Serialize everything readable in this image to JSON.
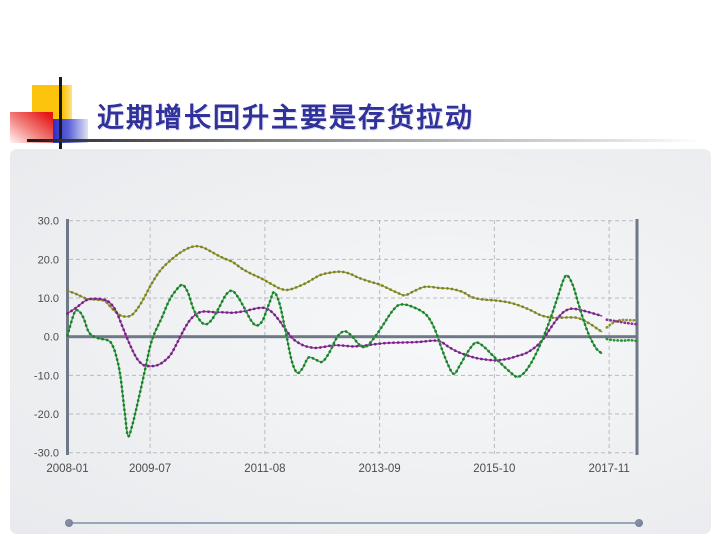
{
  "slide": {
    "title": "近期增长回升主要是存货拉动",
    "title_color": "#31319b"
  },
  "chart_data": {
    "type": "line",
    "title": "",
    "legend": "none",
    "grid": "dashed",
    "grid_color": "#b7bbc2",
    "axis_color": "#6e7887",
    "label_color": "#4c4c4c",
    "x_axis": {
      "unit": "months-since-2008-01",
      "tick_labels": [
        "2008-01",
        "2009-07",
        "2011-08",
        "2013-09",
        "2015-10",
        "2017-11"
      ],
      "tick_months": [
        0,
        18,
        43,
        68,
        93,
        118
      ],
      "range_months": [
        0,
        124
      ]
    },
    "y_axis": {
      "tick_labels": [
        "30.0",
        "20.0",
        "10.0",
        "0.0",
        "-10.0",
        "-20.0",
        "-30.0"
      ],
      "tick_values": [
        30,
        20,
        10,
        0,
        -10,
        -20,
        -30
      ],
      "range": [
        -30,
        30
      ],
      "zero_line": "solid"
    },
    "series": [
      {
        "name": "olive-series",
        "style": "solid-with-markers",
        "color": "#9aa03b",
        "marker_color": "#7f842c",
        "points": [
          [
            0,
            11.9
          ],
          [
            2,
            11.0
          ],
          [
            4,
            9.9
          ],
          [
            6,
            9.6
          ],
          [
            8,
            9.3
          ],
          [
            9,
            8.2
          ],
          [
            10.5,
            6.4
          ],
          [
            12,
            5.3
          ],
          [
            14,
            5.6
          ],
          [
            16,
            8.6
          ],
          [
            18,
            13.0
          ],
          [
            20,
            16.8
          ],
          [
            22,
            19.3
          ],
          [
            24.5,
            21.7
          ],
          [
            26.5,
            23.0
          ],
          [
            28,
            23.4
          ],
          [
            29.5,
            23.1
          ],
          [
            31,
            22.2
          ],
          [
            32.5,
            21.2
          ],
          [
            34,
            20.3
          ],
          [
            36,
            19.3
          ],
          [
            38,
            17.6
          ],
          [
            40,
            16.3
          ],
          [
            42,
            15.2
          ],
          [
            44,
            13.9
          ],
          [
            46,
            12.6
          ],
          [
            47.5,
            12.1
          ],
          [
            49,
            12.4
          ],
          [
            52,
            13.9
          ],
          [
            55,
            15.9
          ],
          [
            57.5,
            16.6
          ],
          [
            59.5,
            16.8
          ],
          [
            61.5,
            16.3
          ],
          [
            63.5,
            15.2
          ],
          [
            66,
            14.2
          ],
          [
            68,
            13.5
          ],
          [
            70,
            12.4
          ],
          [
            72,
            11.3
          ],
          [
            73.5,
            10.7
          ],
          [
            75.5,
            11.8
          ],
          [
            77.5,
            12.8
          ],
          [
            79,
            12.9
          ],
          [
            81,
            12.6
          ],
          [
            83.5,
            12.4
          ],
          [
            86,
            11.6
          ],
          [
            88,
            10.3
          ],
          [
            90,
            9.7
          ],
          [
            93,
            9.4
          ],
          [
            95,
            9.1
          ],
          [
            97,
            8.6
          ],
          [
            99,
            7.8
          ],
          [
            101,
            6.8
          ],
          [
            103,
            5.6
          ],
          [
            105,
            5.0
          ],
          [
            107,
            4.9
          ],
          [
            109,
            5.0
          ],
          [
            111,
            4.9
          ],
          [
            112.5,
            4.2
          ],
          [
            114,
            3.2
          ],
          [
            115.5,
            2.0
          ],
          [
            116.5,
            1.2
          ]
        ]
      },
      {
        "name": "purple-series",
        "style": "solid-with-markers",
        "color": "#9c3da5",
        "marker_color": "#782386",
        "points": [
          [
            0,
            6.0
          ],
          [
            2,
            7.6
          ],
          [
            4,
            9.4
          ],
          [
            5.5,
            9.8
          ],
          [
            7.5,
            9.7
          ],
          [
            9,
            9.0
          ],
          [
            10.5,
            6.8
          ],
          [
            12,
            2.5
          ],
          [
            13.5,
            -1.8
          ],
          [
            15,
            -5.4
          ],
          [
            16.5,
            -7.3
          ],
          [
            18,
            -7.6
          ],
          [
            19.5,
            -7.4
          ],
          [
            21,
            -6.4
          ],
          [
            22.5,
            -4.6
          ],
          [
            23.8,
            -1.8
          ],
          [
            25,
            1.0
          ],
          [
            26.5,
            4.0
          ],
          [
            28,
            5.8
          ],
          [
            29.5,
            6.5
          ],
          [
            31.5,
            6.4
          ],
          [
            34,
            6.3
          ],
          [
            36,
            6.2
          ],
          [
            38,
            6.5
          ],
          [
            40,
            7.0
          ],
          [
            41.5,
            7.4
          ],
          [
            43,
            7.4
          ],
          [
            44.5,
            6.4
          ],
          [
            46,
            4.4
          ],
          [
            47.5,
            1.9
          ],
          [
            49,
            -0.4
          ],
          [
            50.5,
            -1.7
          ],
          [
            52,
            -2.5
          ],
          [
            54,
            -2.9
          ],
          [
            56,
            -2.6
          ],
          [
            58,
            -2.2
          ],
          [
            60,
            -2.3
          ],
          [
            62,
            -2.5
          ],
          [
            64,
            -2.4
          ],
          [
            66,
            -2.1
          ],
          [
            68,
            -1.8
          ],
          [
            70,
            -1.6
          ],
          [
            73,
            -1.5
          ],
          [
            76,
            -1.4
          ],
          [
            78,
            -1.2
          ],
          [
            80,
            -1.0
          ],
          [
            81.5,
            -1.4
          ],
          [
            83,
            -2.6
          ],
          [
            85,
            -3.9
          ],
          [
            87,
            -4.8
          ],
          [
            89,
            -5.5
          ],
          [
            91,
            -5.9
          ],
          [
            93.5,
            -6.1
          ],
          [
            96,
            -5.7
          ],
          [
            98,
            -5.0
          ],
          [
            100,
            -4.2
          ],
          [
            102,
            -2.6
          ],
          [
            103.5,
            -0.8
          ],
          [
            105,
            1.8
          ],
          [
            106.5,
            4.3
          ],
          [
            108,
            6.3
          ],
          [
            109.5,
            7.2
          ],
          [
            111,
            7.1
          ],
          [
            112.5,
            6.7
          ],
          [
            114,
            6.2
          ],
          [
            115.5,
            5.7
          ],
          [
            116.5,
            5.3
          ]
        ]
      },
      {
        "name": "green-series",
        "style": "solid-with-markers",
        "color": "#39a341",
        "marker_color": "#1f8030",
        "points": [
          [
            0,
            0.3
          ],
          [
            1.5,
            6.2
          ],
          [
            2.5,
            6.6
          ],
          [
            3.5,
            4.8
          ],
          [
            4.5,
            1.5
          ],
          [
            5.5,
            0.2
          ],
          [
            7,
            -0.5
          ],
          [
            8.5,
            -0.8
          ],
          [
            9.5,
            -1.6
          ],
          [
            10.5,
            -4.5
          ],
          [
            11.5,
            -10
          ],
          [
            12.5,
            -20
          ],
          [
            13.2,
            -25.7
          ],
          [
            14.2,
            -22.5
          ],
          [
            15.5,
            -16
          ],
          [
            17,
            -8
          ],
          [
            18,
            -2.5
          ],
          [
            19,
            1.0
          ],
          [
            20.5,
            4.8
          ],
          [
            22,
            9.0
          ],
          [
            23.5,
            11.8
          ],
          [
            25,
            13.4
          ],
          [
            26.2,
            11.5
          ],
          [
            27.5,
            7.0
          ],
          [
            29,
            4.0
          ],
          [
            30.2,
            3.2
          ],
          [
            31.5,
            4.5
          ],
          [
            33,
            7.5
          ],
          [
            34.5,
            10.8
          ],
          [
            35.8,
            11.9
          ],
          [
            37,
            10.5
          ],
          [
            38.5,
            7.5
          ],
          [
            40,
            4.2
          ],
          [
            41.2,
            2.9
          ],
          [
            42.5,
            4.2
          ],
          [
            44,
            8.8
          ],
          [
            45,
            11.5
          ],
          [
            46.2,
            8.5
          ],
          [
            47.5,
            1.5
          ],
          [
            48.8,
            -6.0
          ],
          [
            50,
            -9.3
          ],
          [
            51.2,
            -8.2
          ],
          [
            52.5,
            -5.4
          ],
          [
            54,
            -5.9
          ],
          [
            55.5,
            -6.5
          ],
          [
            57,
            -4.2
          ],
          [
            58.2,
            -1.3
          ],
          [
            59.2,
            0.6
          ],
          [
            60.5,
            1.4
          ],
          [
            62,
            0.1
          ],
          [
            63.5,
            -2.0
          ],
          [
            64.8,
            -2.7
          ],
          [
            66,
            -1.5
          ],
          [
            67.5,
            0.8
          ],
          [
            69,
            3.5
          ],
          [
            70.5,
            6.2
          ],
          [
            72,
            8.1
          ],
          [
            73.5,
            8.3
          ],
          [
            75,
            7.8
          ],
          [
            77,
            6.7
          ],
          [
            78.5,
            5.2
          ],
          [
            80,
            2.0
          ],
          [
            81.5,
            -3.0
          ],
          [
            83,
            -7.5
          ],
          [
            84.2,
            -9.6
          ],
          [
            85.5,
            -7.4
          ],
          [
            87,
            -4.3
          ],
          [
            88.5,
            -1.9
          ],
          [
            89.5,
            -1.6
          ],
          [
            91,
            -2.9
          ],
          [
            92.5,
            -4.7
          ],
          [
            94.5,
            -7.0
          ],
          [
            96.5,
            -9.2
          ],
          [
            98,
            -10.4
          ],
          [
            99.5,
            -9.3
          ],
          [
            101,
            -6.8
          ],
          [
            102.5,
            -3.3
          ],
          [
            104,
            0.9
          ],
          [
            105.5,
            5.6
          ],
          [
            107,
            11.0
          ],
          [
            108.2,
            15.1
          ],
          [
            109,
            15.7
          ],
          [
            110.2,
            13.0
          ],
          [
            111.5,
            7.8
          ],
          [
            113,
            2.3
          ],
          [
            114.2,
            -1.0
          ],
          [
            115.3,
            -3.2
          ],
          [
            116.5,
            -4.4
          ]
        ]
      },
      {
        "name": "olive-series-dotted-tail",
        "style": "dotted",
        "color": "#8f942f",
        "marker_color": "#8f942f",
        "points": [
          [
            117.5,
            2.4
          ],
          [
            119,
            3.7
          ],
          [
            120.5,
            4.3
          ],
          [
            122,
            4.3
          ],
          [
            124,
            4.2
          ]
        ]
      },
      {
        "name": "purple-series-dotted-tail",
        "style": "dotted",
        "color": "#8c2f97",
        "marker_color": "#8c2f97",
        "points": [
          [
            117.5,
            4.4
          ],
          [
            119.5,
            4.0
          ],
          [
            121.5,
            3.6
          ],
          [
            124,
            3.2
          ]
        ]
      },
      {
        "name": "green-series-dotted-tail",
        "style": "dotted",
        "color": "#2a8f37",
        "marker_color": "#2a8f37",
        "points": [
          [
            117.5,
            -0.6
          ],
          [
            119,
            -0.9
          ],
          [
            121,
            -1.0
          ],
          [
            122.5,
            -0.9
          ],
          [
            124,
            -1.1
          ]
        ]
      }
    ]
  },
  "scrollbar": {
    "track_color": "#9aa5b7",
    "handle_color": "#75819665"
  }
}
